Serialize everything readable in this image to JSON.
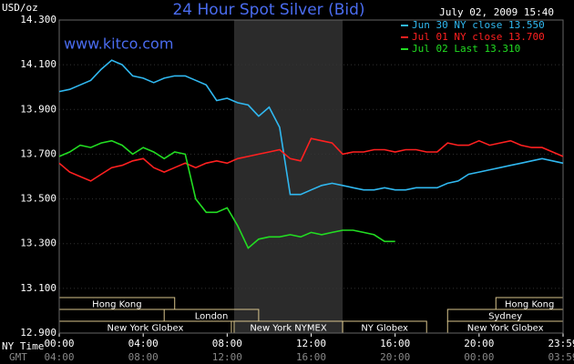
{
  "chart_data": {
    "type": "line",
    "title": "24 Hour Spot Silver (Bid)",
    "timestamp": "July 02, 2009 15:40",
    "watermark": "www.kitco.com",
    "y_label": "USD/oz",
    "x_label": "NY Time",
    "x2_label": "GMT",
    "x": [
      0,
      0.5,
      1,
      1.5,
      2,
      2.5,
      3,
      3.5,
      4,
      4.5,
      5,
      5.5,
      6,
      6.5,
      7,
      7.5,
      8,
      8.5,
      9,
      9.5,
      10,
      10.5,
      11,
      11.5,
      12,
      12.5,
      13,
      13.5,
      14,
      14.5,
      15,
      15.5,
      16,
      16.5,
      17,
      17.5,
      18,
      18.5,
      19,
      19.5,
      20,
      20.5,
      21,
      21.5,
      22,
      22.5,
      23,
      23.5,
      24
    ],
    "series": [
      {
        "name": "Jun 30 NY close 13.550",
        "color": "#30b8f0",
        "values": [
          13.98,
          13.99,
          14.01,
          14.03,
          14.08,
          14.12,
          14.1,
          14.05,
          14.04,
          14.02,
          14.04,
          14.05,
          14.05,
          14.03,
          14.01,
          13.94,
          13.95,
          13.93,
          13.92,
          13.87,
          13.91,
          13.82,
          13.52,
          13.52,
          13.54,
          13.56,
          13.57,
          13.56,
          13.55,
          13.54,
          13.54,
          13.55,
          13.54,
          13.54,
          13.55,
          13.55,
          13.55,
          13.57,
          13.58,
          13.61,
          13.62,
          13.63,
          13.64,
          13.65,
          13.66,
          13.67,
          13.68,
          13.67,
          13.66
        ]
      },
      {
        "name": "Jul 01 NY close 13.700",
        "color": "#ff2020",
        "values": [
          13.66,
          13.62,
          13.6,
          13.58,
          13.61,
          13.64,
          13.65,
          13.67,
          13.68,
          13.64,
          13.62,
          13.64,
          13.66,
          13.64,
          13.66,
          13.67,
          13.66,
          13.68,
          13.69,
          13.7,
          13.71,
          13.72,
          13.68,
          13.67,
          13.77,
          13.76,
          13.75,
          13.7,
          13.71,
          13.71,
          13.72,
          13.72,
          13.71,
          13.72,
          13.72,
          13.71,
          13.71,
          13.75,
          13.74,
          13.74,
          13.76,
          13.74,
          13.75,
          13.76,
          13.74,
          13.73,
          13.73,
          13.71,
          13.69
        ]
      },
      {
        "name": "Jul 02 Last 13.310",
        "color": "#22dd22",
        "values": [
          13.69,
          13.71,
          13.74,
          13.73,
          13.75,
          13.76,
          13.74,
          13.7,
          13.73,
          13.71,
          13.68,
          13.71,
          13.7,
          13.5,
          13.44,
          13.44,
          13.46,
          13.38,
          13.28,
          13.32,
          13.33,
          13.33,
          13.34,
          13.33,
          13.35,
          13.34,
          13.35,
          13.36,
          13.36,
          13.35,
          13.34,
          13.31,
          13.31,
          null,
          null,
          null,
          null,
          null,
          null,
          null,
          null,
          null,
          null,
          null,
          null,
          null,
          null,
          null,
          null
        ]
      }
    ],
    "xlim": [
      0,
      24
    ],
    "xticks": [
      {
        "value": 0,
        "label": "00:00"
      },
      {
        "value": 4,
        "label": "04:00"
      },
      {
        "value": 8,
        "label": "08:00"
      },
      {
        "value": 12,
        "label": "12:00"
      },
      {
        "value": 16,
        "label": "16:00"
      },
      {
        "value": 20,
        "label": "20:00"
      },
      {
        "value": 24,
        "label": "23:59"
      }
    ],
    "x2ticks": [
      {
        "value": 0,
        "label": "04:00"
      },
      {
        "value": 4,
        "label": "08:00"
      },
      {
        "value": 8,
        "label": "12:00"
      },
      {
        "value": 12,
        "label": "16:00"
      },
      {
        "value": 16,
        "label": "20:00"
      },
      {
        "value": 20,
        "label": "00:00"
      },
      {
        "value": 24,
        "label": "03:59"
      }
    ],
    "ylim": [
      12.9,
      14.3
    ],
    "yticks": [
      {
        "value": 12.9,
        "label": "12.900"
      },
      {
        "value": 13.1,
        "label": "13.100"
      },
      {
        "value": 13.3,
        "label": "13.300"
      },
      {
        "value": 13.5,
        "label": "13.500"
      },
      {
        "value": 13.7,
        "label": "13.700"
      },
      {
        "value": 13.9,
        "label": "13.900"
      },
      {
        "value": 14.1,
        "label": "14.100"
      },
      {
        "value": 14.3,
        "label": "14.300"
      }
    ],
    "shaded_hours": {
      "start": 8.33,
      "end": 13.5
    },
    "sessions": [
      [
        {
          "label": "Hong Kong",
          "start": 0,
          "end": 5.5
        },
        {
          "label": "Hong Kong",
          "start": 20.8,
          "end": 24
        }
      ],
      [
        {
          "label": "London",
          "start": 5,
          "end": 9.5
        },
        {
          "label": "Sydney",
          "start": 18.5,
          "end": 24
        }
      ],
      [
        {
          "label": "New York Globex",
          "start": 0,
          "end": 8.2
        },
        {
          "label": "New York NYMEX",
          "start": 8.33,
          "end": 13.5
        },
        {
          "label": "NY Globex",
          "start": 13.5,
          "end": 17.5
        },
        {
          "label": "New York Globex",
          "start": 18.5,
          "end": 24
        }
      ]
    ]
  }
}
